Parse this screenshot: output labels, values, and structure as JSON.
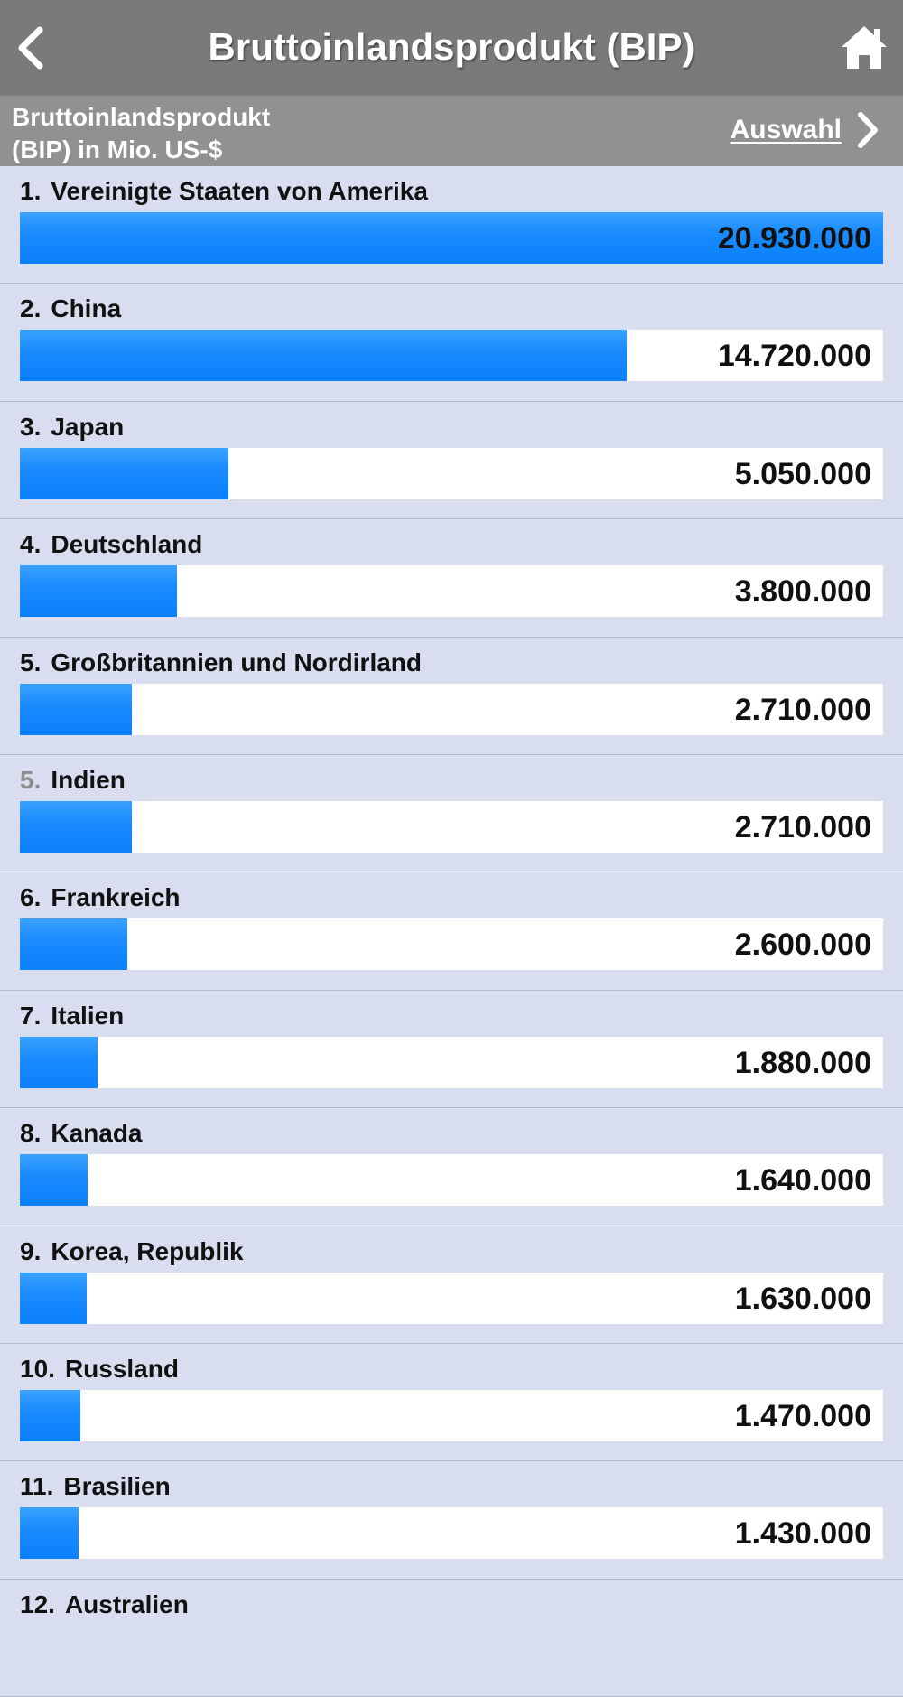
{
  "header": {
    "title": "Bruttoinlandsprodukt (BIP)",
    "back_icon": "chevron-left-icon",
    "home_icon": "home-icon"
  },
  "subheader": {
    "label_line1": "Bruttoinlandsprodukt",
    "label_line2": "(BIP) in Mio. US-$",
    "selection_label": "Auswahl",
    "selection_icon": "chevron-right-icon"
  },
  "colors": {
    "nav_bar": "#7a7a7a",
    "subheader": "#919191",
    "list_background": "#d8ddf0",
    "bar_fill": "#1a8cff",
    "tie_rank": "#8c8c8c"
  },
  "max_value": 20930000,
  "rows": [
    {
      "rank": "1.",
      "tie": false,
      "name": "Vereinigte Staaten von Amerika",
      "value": 20930000,
      "display": "20.930.000"
    },
    {
      "rank": "2.",
      "tie": false,
      "name": "China",
      "value": 14720000,
      "display": "14.720.000"
    },
    {
      "rank": "3.",
      "tie": false,
      "name": "Japan",
      "value": 5050000,
      "display": "5.050.000"
    },
    {
      "rank": "4.",
      "tie": false,
      "name": "Deutschland",
      "value": 3800000,
      "display": "3.800.000"
    },
    {
      "rank": "5.",
      "tie": false,
      "name": "Großbritannien und Nordirland",
      "value": 2710000,
      "display": "2.710.000"
    },
    {
      "rank": "5.",
      "tie": true,
      "name": "Indien",
      "value": 2710000,
      "display": "2.710.000"
    },
    {
      "rank": "6.",
      "tie": false,
      "name": "Frankreich",
      "value": 2600000,
      "display": "2.600.000"
    },
    {
      "rank": "7.",
      "tie": false,
      "name": "Italien",
      "value": 1880000,
      "display": "1.880.000"
    },
    {
      "rank": "8.",
      "tie": false,
      "name": "Kanada",
      "value": 1640000,
      "display": "1.640.000"
    },
    {
      "rank": "9.",
      "tie": false,
      "name": "Korea, Republik",
      "value": 1630000,
      "display": "1.630.000"
    },
    {
      "rank": "10.",
      "tie": false,
      "name": "Russland",
      "value": 1470000,
      "display": "1.470.000"
    },
    {
      "rank": "11.",
      "tie": false,
      "name": "Brasilien",
      "value": 1430000,
      "display": "1.430.000"
    },
    {
      "rank": "12.",
      "tie": false,
      "name": "Australien",
      "value": null,
      "display": ""
    }
  ]
}
